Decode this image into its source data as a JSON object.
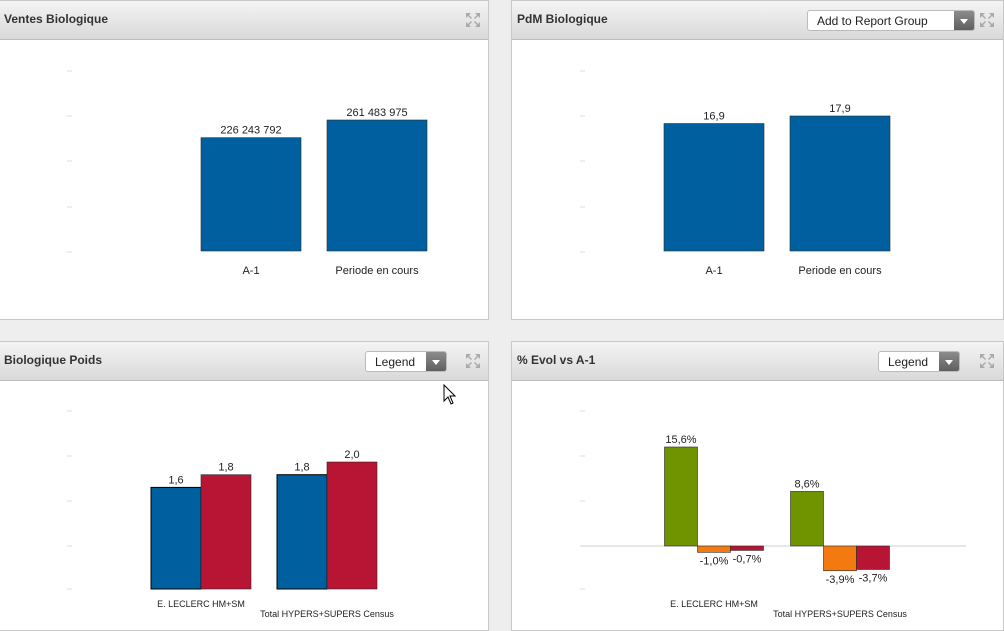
{
  "panels": [
    {
      "title": "Ventes Biologique",
      "expand_icon": "expand-icon",
      "chart_data": {
        "type": "bar",
        "categories": [
          "A-1",
          "Periode en cours"
        ],
        "series": [
          {
            "values": [
              226243792,
              261483975
            ],
            "color": "#00609f"
          }
        ],
        "data_labels": [
          "226 243 792",
          "261 483 975"
        ],
        "ylim": [
          0,
          300000000
        ],
        "grid": false
      }
    },
    {
      "title": "PdM Biologique",
      "dropdown": {
        "label": "Add to Report Group"
      },
      "expand_icon": "expand-icon",
      "chart_data": {
        "type": "bar",
        "categories": [
          "A-1",
          "Periode en cours"
        ],
        "series": [
          {
            "values": [
              16.9,
              17.9
            ],
            "color": "#00609f"
          }
        ],
        "data_labels": [
          "16,9",
          "17,9"
        ],
        "ylim": [
          0,
          20
        ],
        "grid": false
      }
    },
    {
      "title": "Biologique Poids",
      "dropdown": {
        "label": "Legend"
      },
      "expand_icon": "expand-icon",
      "chart_data": {
        "type": "bar",
        "categories": [
          "E. LECLERC HM+SM",
          "Total HYPERS+SUPERS Census"
        ],
        "series": [
          {
            "values": [
              1.6,
              1.8
            ],
            "color": "#00609f",
            "labels": [
              "1,6",
              "1,8"
            ]
          },
          {
            "values": [
              1.8,
              2.0
            ],
            "color": "#b81434",
            "labels": [
              "1,8",
              "2,0"
            ]
          }
        ],
        "ylim": [
          0,
          2.5
        ],
        "grid": false
      }
    },
    {
      "title": "% Evol vs A-1",
      "dropdown": {
        "label": "Legend"
      },
      "expand_icon": "expand-icon",
      "chart_data": {
        "type": "bar",
        "categories": [
          "E. LECLERC HM+SM",
          "Total HYPERS+SUPERS Census"
        ],
        "series": [
          {
            "values": [
              15.6,
              8.6
            ],
            "color": "#6f9400",
            "labels": [
              "15,6%",
              "8,6%"
            ]
          },
          {
            "values": [
              -1.0,
              -3.9
            ],
            "color": "#f27a10",
            "labels": [
              "-1,0%",
              "-3,9%"
            ]
          },
          {
            "values": [
              -0.7,
              -3.7
            ],
            "color": "#b81434",
            "labels": [
              "-0,7%",
              "-3,7%"
            ]
          }
        ],
        "ylim": [
          -6,
          20
        ],
        "grid": false,
        "zero_line": true
      }
    }
  ],
  "cursor": "arrow-cursor"
}
